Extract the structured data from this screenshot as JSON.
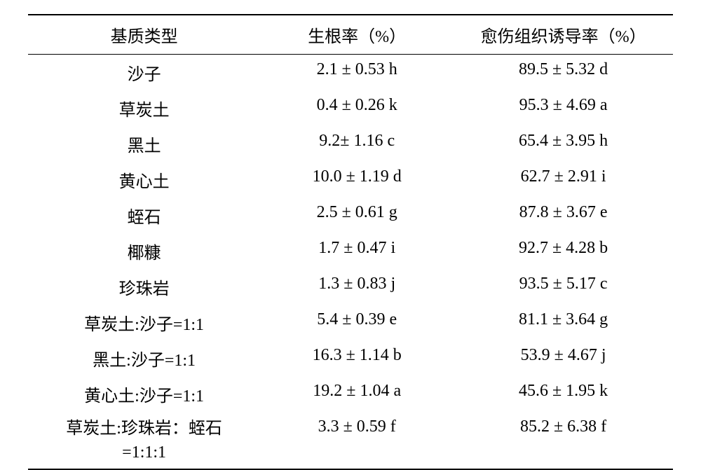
{
  "table": {
    "columns": [
      "基质类型",
      "生根率（%）",
      "愈伤组织诱导率（%）"
    ],
    "rows": [
      [
        "沙子",
        "2.1 ± 0.53 h",
        "89.5 ± 5.32 d"
      ],
      [
        "草炭土",
        "0.4 ± 0.26 k",
        "95.3 ± 4.69 a"
      ],
      [
        "黑土",
        "9.2± 1.16 c",
        "65.4 ± 3.95 h"
      ],
      [
        "黄心土",
        "10.0 ± 1.19 d",
        "62.7 ± 2.91 i"
      ],
      [
        "蛭石",
        "2.5 ± 0.61 g",
        "87.8 ± 3.67 e"
      ],
      [
        "椰糠",
        "1.7 ± 0.47 i",
        "92.7 ± 4.28 b"
      ],
      [
        "珍珠岩",
        "1.3 ± 0.83 j",
        "93.5 ± 5.17 c"
      ],
      [
        "草炭土:沙子=1:1",
        "5.4 ± 0.39 e",
        "81.1 ± 3.64 g"
      ],
      [
        "黑土:沙子=1:1",
        "16.3 ± 1.14 b",
        "53.9 ± 4.67 j"
      ],
      [
        "黄心土:沙子=1:1",
        "19.2 ± 1.04 a",
        "45.6 ± 1.95 k"
      ],
      [
        "草炭土:珍珠岩：蛭石=1:1:1",
        "3.3 ± 0.59 f",
        "85.2 ± 6.38 f"
      ]
    ],
    "font_size": 24,
    "text_color": "#000000",
    "background_color": "#ffffff",
    "border_color": "#000000"
  }
}
